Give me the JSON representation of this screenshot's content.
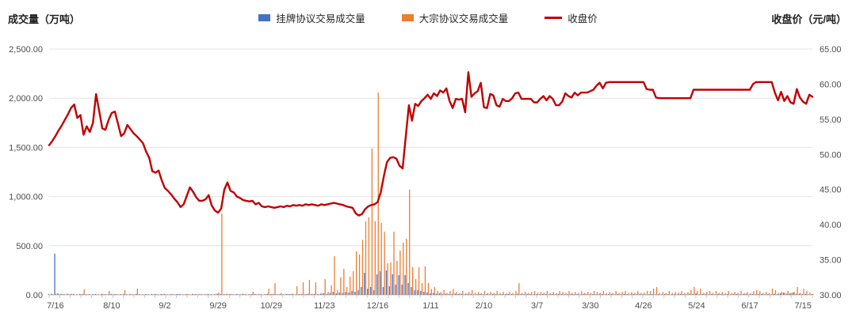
{
  "header": {
    "volume_axis_title": "成交量（万吨）",
    "price_axis_title": "收盘价（元/吨）"
  },
  "legend": [
    {
      "label": "挂牌协议交易成交量",
      "color": "#4472C4",
      "type": "bar"
    },
    {
      "label": "大宗协议交易成交量",
      "color": "#ED7D31",
      "type": "bar"
    },
    {
      "label": "收盘价",
      "color": "#C00000",
      "type": "line"
    }
  ],
  "chart_data": {
    "type": "bar",
    "subtype": "combo-bar-line-daily",
    "grid": true,
    "legend_position": "top",
    "background": "#ffffff",
    "gridline_color": "#e4e4e4",
    "axis_line_color": "#c9c9c9",
    "left_axis": {
      "title": "成交量（万吨）",
      "min": 0,
      "max": 2500,
      "step": 500,
      "tick_labels": [
        "2,500.00",
        "2,000.00",
        "1,500.00",
        "1,000.00",
        "500.00",
        "0.00"
      ]
    },
    "right_axis": {
      "title": "收盘价（元/吨）",
      "min": 30,
      "max": 65,
      "step": 5,
      "tick_labels": [
        "65.00",
        "60.00",
        "55.00",
        "50.00",
        "45.00",
        "40.00",
        "35.00",
        "30.00"
      ]
    },
    "x_ticks": [
      {
        "i": 2,
        "label": "7/16"
      },
      {
        "i": 20,
        "label": "8/10"
      },
      {
        "i": 37,
        "label": "9/2"
      },
      {
        "i": 54,
        "label": "9/29"
      },
      {
        "i": 71,
        "label": "10/29"
      },
      {
        "i": 88,
        "label": "11/23"
      },
      {
        "i": 105,
        "label": "12/16"
      },
      {
        "i": 122,
        "label": "1/11"
      },
      {
        "i": 139,
        "label": "2/10"
      },
      {
        "i": 156,
        "label": "3/7"
      },
      {
        "i": 173,
        "label": "3/30"
      },
      {
        "i": 190,
        "label": "4/26"
      },
      {
        "i": 207,
        "label": "5/24"
      },
      {
        "i": 224,
        "label": "6/17"
      },
      {
        "i": 241,
        "label": "7/15"
      }
    ],
    "series": [
      {
        "name": "挂牌协议交易成交量",
        "type": "bar",
        "axis": "left",
        "color": "#4472C4",
        "values": [
          8,
          12,
          420,
          16,
          10,
          8,
          12,
          8,
          10,
          6,
          8,
          10,
          6,
          8,
          6,
          8,
          6,
          10,
          8,
          6,
          10,
          8,
          6,
          8,
          10,
          6,
          8,
          6,
          10,
          8,
          6,
          8,
          6,
          10,
          8,
          6,
          8,
          10,
          6,
          8,
          6,
          8,
          10,
          6,
          8,
          6,
          10,
          8,
          6,
          8,
          6,
          10,
          8,
          6,
          12,
          8,
          6,
          10,
          8,
          6,
          8,
          6,
          10,
          8,
          6,
          8,
          10,
          6,
          8,
          6,
          12,
          8,
          10,
          6,
          8,
          6,
          10,
          8,
          12,
          6,
          8,
          10,
          6,
          12,
          8,
          10,
          8,
          12,
          16,
          10,
          20,
          30,
          16,
          24,
          20,
          30,
          24,
          40,
          32,
          48,
          80,
          225,
          64,
          80,
          48,
          209,
          241,
          80,
          249,
          88,
          209,
          105,
          201,
          105,
          201,
          121,
          80,
          48,
          48,
          40,
          32,
          24,
          16,
          20,
          12,
          16,
          10,
          12,
          8,
          10,
          12,
          8,
          10,
          6,
          8,
          10,
          6,
          8,
          10,
          6,
          8,
          6,
          10,
          8,
          6,
          8,
          6,
          10,
          8,
          6,
          12,
          8,
          6,
          10,
          8,
          6,
          8,
          6,
          10,
          8,
          6,
          8,
          6,
          10,
          8,
          6,
          8,
          10,
          6,
          8,
          6,
          10,
          8,
          6,
          8,
          6,
          10,
          8,
          6,
          8,
          10,
          6,
          8,
          6,
          10,
          8,
          6,
          8,
          6,
          10,
          8,
          6,
          8,
          10,
          6,
          8,
          6,
          10,
          8,
          6,
          8,
          6,
          10,
          8,
          6,
          12,
          8,
          16,
          6,
          8,
          10,
          6,
          8,
          6,
          10,
          8,
          6,
          8,
          6,
          10,
          8,
          6,
          8,
          10,
          6,
          8,
          6,
          10,
          8,
          6,
          8,
          6,
          10,
          8,
          16,
          24,
          12,
          16,
          24,
          10,
          12,
          8,
          10,
          6,
          8
        ]
      },
      {
        "name": "大宗协议交易成交量",
        "type": "bar",
        "axis": "left",
        "color": "#ED7D31",
        "values": [
          4,
          6,
          10,
          6,
          8,
          4,
          6,
          10,
          4,
          6,
          8,
          56,
          6,
          4,
          8,
          6,
          4,
          10,
          6,
          40,
          6,
          8,
          4,
          6,
          48,
          4,
          8,
          6,
          64,
          4,
          6,
          8,
          4,
          6,
          10,
          4,
          8,
          6,
          4,
          10,
          6,
          8,
          4,
          6,
          10,
          4,
          8,
          6,
          10,
          4,
          8,
          6,
          4,
          10,
          24,
          828,
          8,
          6,
          10,
          4,
          8,
          6,
          10,
          4,
          8,
          32,
          6,
          10,
          4,
          8,
          64,
          10,
          120,
          8,
          20,
          6,
          10,
          8,
          6,
          88,
          10,
          128,
          8,
          153,
          10,
          128,
          8,
          20,
          161,
          30,
          100,
          395,
          50,
          180,
          265,
          80,
          185,
          241,
          442,
          410,
          560,
          748,
          788,
          1490,
          748,
          2058,
          732,
          643,
          322,
          330,
          643,
          346,
          450,
          531,
          571,
          1069,
          281,
          161,
          281,
          120,
          290,
          121,
          60,
          80,
          40,
          30,
          50,
          20,
          40,
          60,
          30,
          20,
          40,
          20,
          30,
          50,
          20,
          30,
          20,
          40,
          20,
          30,
          20,
          40,
          20,
          30,
          20,
          30,
          20,
          40,
          120,
          20,
          30,
          20,
          30,
          40,
          20,
          30,
          20,
          40,
          20,
          30,
          20,
          40,
          30,
          20,
          40,
          20,
          30,
          20,
          40,
          20,
          30,
          20,
          40,
          30,
          20,
          40,
          20,
          30,
          20,
          40,
          20,
          30,
          40,
          20,
          30,
          20,
          40,
          20,
          24,
          40,
          40,
          64,
          80,
          20,
          30,
          20,
          40,
          20,
          30,
          24,
          40,
          20,
          30,
          48,
          80,
          40,
          64,
          20,
          30,
          40,
          20,
          40,
          20,
          30,
          20,
          40,
          20,
          30,
          20,
          40,
          20,
          30,
          20,
          40,
          48,
          40,
          20,
          30,
          20,
          64,
          48,
          20,
          30,
          20,
          40,
          20,
          30,
          80,
          20,
          60,
          40,
          24,
          10
        ]
      },
      {
        "name": "收盘价",
        "type": "line",
        "axis": "right",
        "color": "#C00000",
        "values": [
          51.3,
          51.9,
          52.6,
          53.4,
          54.1,
          54.9,
          55.7,
          56.6,
          57.1,
          55.2,
          55.6,
          52.8,
          54.0,
          53.2,
          54.5,
          58.6,
          56.2,
          53.7,
          53.5,
          54.9,
          55.9,
          56.1,
          54.4,
          52.6,
          53.0,
          54.2,
          53.6,
          53.0,
          52.6,
          52.1,
          51.6,
          50.4,
          49.5,
          47.6,
          47.4,
          47.7,
          46.3,
          45.2,
          44.8,
          44.3,
          43.7,
          43.2,
          42.5,
          42.9,
          44.1,
          45.3,
          44.7,
          43.9,
          43.4,
          43.4,
          43.6,
          44.2,
          42.7,
          42.0,
          41.7,
          42.3,
          45.0,
          46.0,
          44.8,
          44.6,
          44.0,
          43.8,
          43.5,
          43.4,
          43.3,
          43.4,
          42.9,
          43.1,
          42.6,
          42.5,
          42.6,
          42.5,
          42.4,
          42.5,
          42.6,
          42.5,
          42.7,
          42.6,
          42.8,
          42.7,
          42.8,
          42.7,
          42.9,
          42.8,
          42.9,
          42.8,
          42.7,
          42.9,
          42.8,
          42.9,
          43.0,
          43.1,
          43.0,
          42.9,
          42.8,
          42.6,
          42.5,
          42.4,
          41.6,
          41.3,
          41.5,
          42.2,
          42.6,
          42.8,
          42.9,
          43.2,
          44.6,
          46.9,
          48.9,
          49.5,
          49.6,
          49.4,
          48.4,
          48.0,
          52.5,
          57.0,
          54.8,
          57.2,
          56.9,
          57.6,
          58.0,
          58.5,
          57.9,
          58.7,
          58.3,
          59.1,
          58.8,
          59.4,
          57.6,
          56.6,
          57.9,
          57.8,
          57.9,
          56.0,
          61.7,
          58.2,
          58.7,
          59.0,
          60.2,
          56.7,
          56.6,
          58.6,
          58.4,
          57.0,
          56.8,
          57.9,
          57.6,
          57.6,
          58.0,
          58.7,
          58.8,
          57.9,
          57.9,
          57.9,
          57.9,
          57.4,
          57.4,
          57.9,
          58.3,
          57.7,
          58.3,
          57.9,
          57.0,
          57.0,
          57.5,
          58.7,
          58.3,
          58.1,
          58.8,
          58.4,
          58.8,
          58.8,
          58.8,
          59.0,
          59.2,
          59.8,
          60.2,
          59.4,
          60.2,
          60.3,
          60.3,
          60.3,
          60.3,
          60.3,
          60.3,
          60.3,
          60.3,
          60.3,
          60.3,
          60.3,
          60.3,
          59.3,
          59.2,
          59.2,
          58.1,
          58.0,
          58.0,
          58.0,
          58.0,
          58.0,
          58.0,
          58.0,
          58.0,
          58.0,
          58.0,
          58.0,
          59.2,
          59.2,
          59.2,
          59.2,
          59.2,
          59.2,
          59.2,
          59.2,
          59.2,
          59.2,
          59.2,
          59.2,
          59.2,
          59.2,
          59.2,
          59.2,
          59.2,
          59.2,
          59.2,
          60.0,
          60.3,
          60.3,
          60.3,
          60.3,
          60.3,
          60.3,
          58.8,
          57.7,
          58.9,
          57.6,
          58.3,
          57.4,
          57.2,
          59.3,
          58.1,
          57.5,
          57.2,
          58.5,
          58.2
        ]
      }
    ]
  }
}
